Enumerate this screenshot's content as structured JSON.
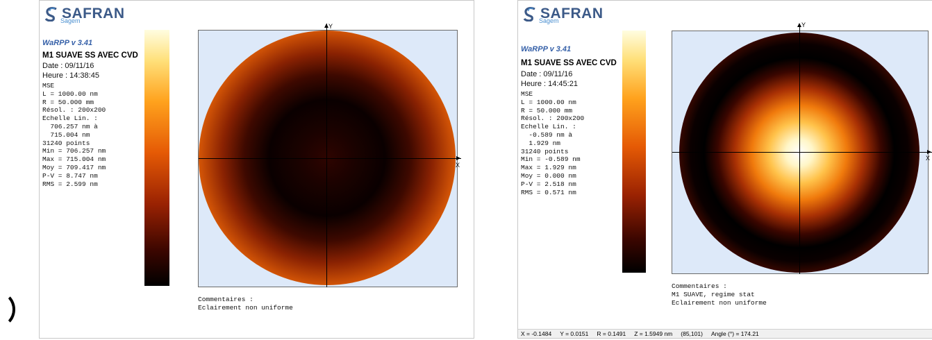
{
  "left_panel": {
    "logo": {
      "brand": "SAFRAN",
      "sub": "Sagem"
    },
    "version": "WaRPP  v 3.41",
    "title": "M1 SUAVE SS AVEC CVD",
    "date": "Date : 09/11/16",
    "time": "Heure : 14:38:45",
    "stats_lines": [
      "MSE",
      "L = 1000.00 nm",
      "R = 50.000 mm",
      "Résol. : 200x200",
      "Echelle Lin. :",
      "  706.257 nm à",
      "  715.004 nm",
      "31240 points",
      "Min = 706.257 nm",
      "Max = 715.004 nm",
      "Moy = 709.417 nm",
      "P-V = 8.747 nm",
      "RMS = 2.599 nm"
    ],
    "axis": {
      "x": "X",
      "y": "Y"
    },
    "comments": [
      "Commentaires :",
      "Eclairement non uniforme"
    ]
  },
  "right_panel": {
    "logo": {
      "brand": "SAFRAN",
      "sub": "Sagem"
    },
    "version": "WaRPP  v 3.41",
    "title": "M1 SUAVE SS AVEC CVD",
    "date": "Date : 09/11/16",
    "time": "Heure : 14:45:21",
    "stats_lines": [
      "MSE",
      "L = 1000.00 nm",
      "R = 50.000 mm",
      "Résol. : 200x200",
      "Echelle Lin. :",
      "  -0.589 nm à",
      "  1.929 nm",
      "31240 points",
      "Min = -0.589 nm",
      "Max = 1.929 nm",
      "Moy = 0.000 nm",
      "P-V = 2.518 nm",
      "RMS = 0.571 nm"
    ],
    "axis": {
      "x": "X",
      "y": "Y"
    },
    "comments": [
      "Commentaires :",
      "M1 SUAVE, regime stat",
      "Eclairement non uniforme"
    ],
    "status": {
      "x": "X = -0.1484",
      "y": "Y = 0.0151",
      "r": "R = 0.1491",
      "z": "Z = 1.5949 nm",
      "pixel": "(85,101)",
      "angle": "Angle (°) = 174.21"
    }
  },
  "colors": {
    "brand_blue": "#3c5a88",
    "plot_background": "#dde9f9",
    "colormap": [
      "#000000",
      "#3c0600",
      "#9a2202",
      "#e55a05",
      "#ffa21d",
      "#ffe07a",
      "#fffde0"
    ]
  }
}
